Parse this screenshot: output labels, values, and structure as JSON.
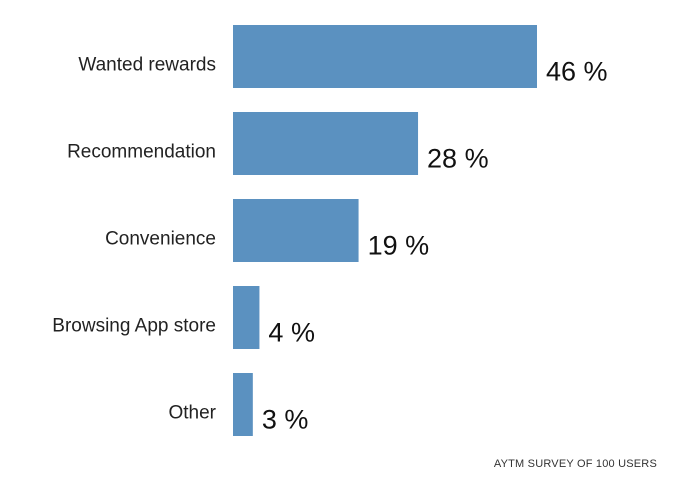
{
  "chart_data": {
    "type": "bar",
    "orientation": "horizontal",
    "categories": [
      "Wanted rewards",
      "Recommendation",
      "Convenience",
      "Browsing App store",
      "Other"
    ],
    "values": [
      46,
      28,
      19,
      4,
      3
    ],
    "value_labels": [
      "46 %",
      "28 %",
      "19 %",
      "4 %",
      "3 %"
    ],
    "unit": "%",
    "xlim": [
      0,
      46
    ],
    "grid": false,
    "legend": "none",
    "bar_color": "#5b91c0"
  },
  "footnote": "AYTM SURVEY OF 100 USERS"
}
